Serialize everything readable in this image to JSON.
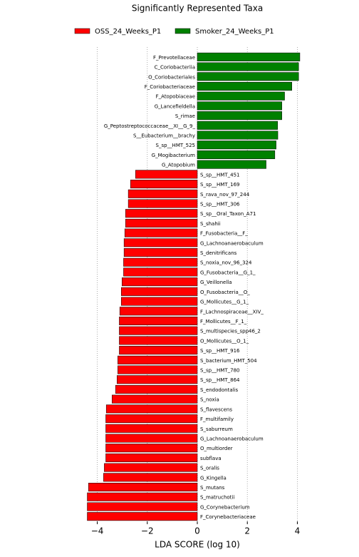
{
  "chart_data": {
    "type": "barh",
    "title": "Significantly Represented Taxa",
    "xlabel": "LDA SCORE (log 10)",
    "categories": [
      "F_Prevotellaceae",
      "C_Coriobacteriia",
      "O_Coriobacteriales",
      "F_Coriobacteriaceae",
      "F_Atopobiaceae",
      "G_Lancefieldella",
      "S_rimae",
      "G_Peptostreptococcaceae__XI__G_9_",
      "S__Eubacterium__brachy",
      "S_sp__HMT_525",
      "G_Mogibacterium",
      "G_Atopobium",
      "S_sp__HMT_451",
      "S_sp__HMT_169",
      "S_rava_nov_97_244",
      "S_sp__HMT_306",
      "S_sp__Oral_Taxon_A71",
      "S_shahii",
      "F_Fusobacteria__F_",
      "G_Lachnoanaerobaculum",
      "S_denitrificans",
      "S_noxia_nov_96_324",
      "G_Fusobacteria__G_1_",
      "G_Veillonella",
      "O_Fusobacteria__O_",
      "G_Mollicutes__G_1_",
      "F_Lachnospiraceae__XIV_",
      "F_Mollicutes__F_1_",
      "S_multispecies_spp46_2",
      "O_Mollicutes__O_1_",
      "S_sp__HMT_916",
      "S_bacterium_HMT_504",
      "S_sp__HMT_780",
      "S_sp__HMT_864",
      "S_endodontalis",
      "S_noxia",
      "S_flavescens",
      "F_multifamily",
      "S_saburreum",
      "G_Lachnoanaerobaculum",
      "O_multiorder",
      "subflava",
      "S_oralis",
      "G_Kingella",
      "S_mutans",
      "S_matruchotii",
      "G_Corynebacterium",
      "F_Corynebacteriaceae"
    ],
    "series": [
      {
        "name": "OSS_24_Weeks_P1",
        "color": "#ff0000",
        "values": [
          null,
          null,
          null,
          null,
          null,
          null,
          null,
          null,
          null,
          null,
          null,
          null,
          -2.47,
          -2.67,
          -2.76,
          -2.76,
          -2.87,
          -2.87,
          -2.9,
          -2.93,
          -2.93,
          -2.95,
          -2.95,
          -3.01,
          -3.04,
          -3.04,
          -3.1,
          -3.12,
          -3.12,
          -3.12,
          -3.12,
          -3.18,
          -3.18,
          -3.21,
          -3.27,
          -3.41,
          -3.64,
          -3.66,
          -3.66,
          -3.66,
          -3.66,
          -3.66,
          -3.72,
          -3.75,
          -4.35,
          -4.4,
          -4.4,
          -4.4
        ]
      },
      {
        "name": "Smoker_24_Weeks_P1",
        "color": "#008000",
        "values": [
          4.1,
          4.05,
          4.05,
          3.78,
          3.49,
          3.38,
          3.38,
          3.21,
          3.22,
          3.15,
          3.1,
          2.75,
          null,
          null,
          null,
          null,
          null,
          null,
          null,
          null,
          null,
          null,
          null,
          null,
          null,
          null,
          null,
          null,
          null,
          null,
          null,
          null,
          null,
          null,
          null,
          null,
          null,
          null,
          null,
          null,
          null,
          null,
          null,
          null,
          null,
          null,
          null,
          null
        ]
      }
    ],
    "xlim": [
      -4.5,
      4.5
    ],
    "xticks": [
      {
        "value": -4,
        "label": "−4"
      },
      {
        "value": -2,
        "label": "−2"
      },
      0,
      2,
      4
    ],
    "grid": true
  }
}
